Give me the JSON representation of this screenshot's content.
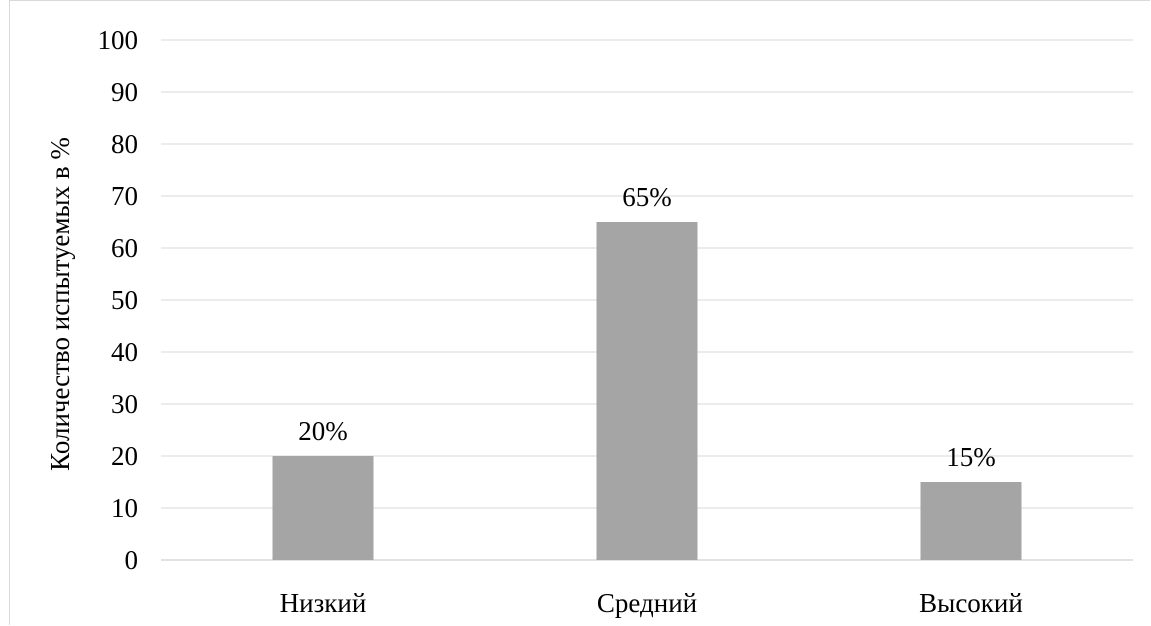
{
  "chart_data": {
    "type": "bar",
    "categories": [
      "Низкий",
      "Средний",
      "Высокий"
    ],
    "values": [
      20,
      65,
      15
    ],
    "data_labels": [
      "20%",
      "65%",
      "15%"
    ],
    "title": "",
    "xlabel": "",
    "ylabel": "Количество испытуемых в %",
    "ylim": [
      0,
      100
    ],
    "yticks": [
      0,
      10,
      20,
      30,
      40,
      50,
      60,
      70,
      80,
      90,
      100
    ],
    "grid": true,
    "legend": "none",
    "colors": {
      "bar": "#a5a5a5",
      "grid": "#d9d9d9",
      "axis": "#d9d9d9"
    }
  }
}
